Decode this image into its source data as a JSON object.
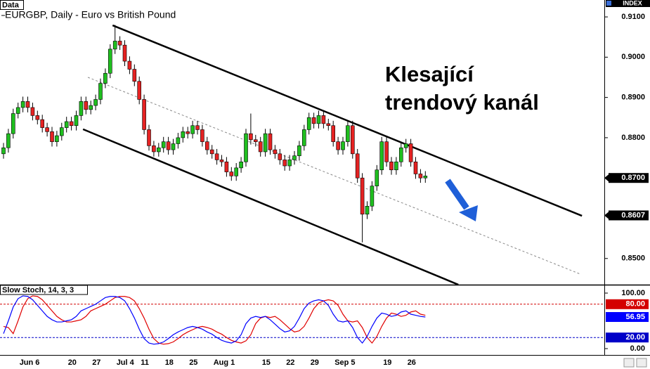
{
  "header": {
    "badge": "Data",
    "title": "EURGBP, Daily - Euro vs British Pound",
    "index_label": "INDEX"
  },
  "annotation": {
    "lines": [
      "Klesající",
      "trendový kanál"
    ]
  },
  "chart_data": [
    {
      "type": "candlestick",
      "categories": [
        null,
        null,
        null,
        "Jun 6",
        null,
        null,
        null,
        null,
        null,
        null,
        null,
        null,
        null,
        "20",
        null,
        null,
        null,
        null,
        "27",
        null,
        null,
        null,
        null,
        "Jul 4",
        null,
        null,
        null,
        null,
        "11",
        null,
        null,
        null,
        null,
        "18",
        null,
        null,
        null,
        null,
        "25",
        null,
        null,
        null,
        null,
        "Aug 1",
        null,
        null,
        null,
        null,
        null,
        null,
        null,
        null,
        null,
        "15",
        null,
        null,
        null,
        null,
        "22",
        null,
        null,
        null,
        null,
        "29",
        null,
        null,
        null,
        null,
        "Sep 5",
        null,
        null,
        null,
        null,
        null,
        null,
        null,
        null,
        null,
        "19",
        null,
        null,
        null,
        null,
        "26",
        null,
        null,
        null,
        null
      ],
      "open": [
        0.876,
        0.8775,
        0.881,
        0.886,
        0.8875,
        0.889,
        0.8875,
        0.8855,
        0.8845,
        0.8825,
        0.8815,
        0.879,
        0.8805,
        0.8825,
        0.884,
        0.883,
        0.8855,
        0.889,
        0.887,
        0.888,
        0.8895,
        0.8935,
        0.896,
        0.902,
        0.904,
        0.903,
        0.899,
        0.897,
        0.894,
        0.8895,
        0.882,
        0.878,
        0.8765,
        0.8775,
        0.879,
        0.877,
        0.8785,
        0.88,
        0.8815,
        0.881,
        0.883,
        0.882,
        0.879,
        0.877,
        0.876,
        0.8745,
        0.874,
        0.8715,
        0.8705,
        0.8725,
        0.874,
        0.881,
        0.8795,
        0.879,
        0.8765,
        0.881,
        0.877,
        0.876,
        0.8745,
        0.873,
        0.8745,
        0.8755,
        0.878,
        0.882,
        0.885,
        0.8835,
        0.8855,
        0.8835,
        0.883,
        0.879,
        0.877,
        0.879,
        0.883,
        0.876,
        0.87,
        0.861,
        0.863,
        0.868,
        0.872,
        0.879,
        0.874,
        0.872,
        0.874,
        0.8775,
        0.8785,
        0.874,
        0.871,
        0.87
      ],
      "high": [
        0.8787,
        0.8822,
        0.8872,
        0.8887,
        0.8902,
        0.8902,
        0.8887,
        0.8867,
        0.8857,
        0.8837,
        0.8827,
        0.8817,
        0.8837,
        0.8852,
        0.8852,
        0.8867,
        0.8902,
        0.8902,
        0.8892,
        0.8907,
        0.8947,
        0.8972,
        0.9032,
        0.908,
        0.9052,
        0.9042,
        0.9002,
        0.8982,
        0.8952,
        0.8907,
        0.8832,
        0.8792,
        0.8787,
        0.8802,
        0.8802,
        0.8797,
        0.8812,
        0.8827,
        0.8827,
        0.8842,
        0.8842,
        0.8832,
        0.8802,
        0.8782,
        0.8772,
        0.8757,
        0.8752,
        0.8727,
        0.8737,
        0.8752,
        0.8822,
        0.886,
        0.8807,
        0.8802,
        0.8822,
        0.8822,
        0.8782,
        0.8772,
        0.8757,
        0.8757,
        0.8767,
        0.8792,
        0.8832,
        0.8862,
        0.8862,
        0.8867,
        0.8867,
        0.8847,
        0.8842,
        0.8802,
        0.8802,
        0.8842,
        0.8842,
        0.8772,
        0.8712,
        0.8642,
        0.8692,
        0.8732,
        0.8802,
        0.8802,
        0.8752,
        0.8752,
        0.8787,
        0.8797,
        0.8797,
        0.8752,
        0.8722,
        0.8717
      ],
      "low": [
        0.8748,
        0.8763,
        0.8798,
        0.8848,
        0.8863,
        0.8863,
        0.8843,
        0.8833,
        0.8813,
        0.8803,
        0.8778,
        0.8778,
        0.8793,
        0.8813,
        0.8818,
        0.8818,
        0.8843,
        0.8858,
        0.8858,
        0.8868,
        0.8883,
        0.8923,
        0.8948,
        0.9008,
        0.9018,
        0.8978,
        0.8958,
        0.8928,
        0.8883,
        0.8808,
        0.8768,
        0.8753,
        0.8753,
        0.8763,
        0.8758,
        0.8758,
        0.8773,
        0.8788,
        0.8798,
        0.8798,
        0.8808,
        0.8778,
        0.8758,
        0.8748,
        0.8733,
        0.8728,
        0.8703,
        0.8693,
        0.8693,
        0.8713,
        0.8728,
        0.8783,
        0.8778,
        0.8753,
        0.8753,
        0.8758,
        0.8748,
        0.8733,
        0.8718,
        0.8718,
        0.8733,
        0.8743,
        0.8768,
        0.8808,
        0.8823,
        0.8823,
        0.8823,
        0.8818,
        0.8778,
        0.8758,
        0.8758,
        0.8778,
        0.8748,
        0.8688,
        0.854,
        0.8598,
        0.8618,
        0.8668,
        0.8708,
        0.8728,
        0.8708,
        0.8708,
        0.8728,
        0.8763,
        0.8728,
        0.8698,
        0.8688,
        0.8688
      ],
      "close": [
        0.8775,
        0.881,
        0.886,
        0.8875,
        0.889,
        0.8875,
        0.8855,
        0.8845,
        0.8825,
        0.8815,
        0.879,
        0.8805,
        0.8825,
        0.884,
        0.883,
        0.8855,
        0.889,
        0.887,
        0.888,
        0.8895,
        0.8935,
        0.896,
        0.902,
        0.904,
        0.903,
        0.899,
        0.897,
        0.894,
        0.8895,
        0.882,
        0.878,
        0.8765,
        0.8775,
        0.879,
        0.877,
        0.8785,
        0.88,
        0.8815,
        0.881,
        0.883,
        0.882,
        0.879,
        0.877,
        0.876,
        0.8745,
        0.874,
        0.8715,
        0.8705,
        0.8725,
        0.874,
        0.881,
        0.8795,
        0.879,
        0.8765,
        0.881,
        0.877,
        0.876,
        0.8745,
        0.873,
        0.8745,
        0.8755,
        0.878,
        0.882,
        0.885,
        0.8835,
        0.8855,
        0.8835,
        0.883,
        0.879,
        0.877,
        0.879,
        0.883,
        0.876,
        0.87,
        0.861,
        0.863,
        0.868,
        0.872,
        0.879,
        0.874,
        0.872,
        0.874,
        0.8775,
        0.8785,
        0.874,
        0.871,
        0.87,
        0.8705
      ],
      "up_color": "#1fbf1f",
      "down_color": "#e52222",
      "ylim": [
        0.8435,
        0.9142
      ],
      "yticks": [
        {
          "value": 0.91,
          "label": "0.9100"
        },
        {
          "value": 0.9,
          "label": "0.9000"
        },
        {
          "value": 0.89,
          "label": "0.8900"
        },
        {
          "value": 0.88,
          "label": "0.8800"
        },
        {
          "value": 0.85,
          "label": "0.8500"
        }
      ],
      "markers": [
        {
          "value": 0.87,
          "label": "0.8700"
        },
        {
          "value": 0.8607,
          "label": "0.8607"
        }
      ],
      "trendlines": [
        {
          "x": [
            22.5,
            119.3
          ],
          "y": [
            0.9079,
            0.8606
          ],
          "dashed": false
        },
        {
          "x": [
            16.4,
            93.8
          ],
          "y": [
            0.8821,
            0.8435
          ],
          "dashed": false
        },
        {
          "x": [
            17.4,
            118.8
          ],
          "y": [
            0.895,
            0.8462
          ],
          "dashed": true
        }
      ]
    },
    {
      "type": "line",
      "title": "Slow Stoch, 14, 3, 3",
      "ylim": [
        -11.4,
        115.2
      ],
      "yticks": [
        {
          "value": 100,
          "label": "100.00"
        },
        {
          "value": 0,
          "label": "0.00"
        }
      ],
      "levels": [
        {
          "value": 80,
          "label": "80.00",
          "color": "#d40000"
        },
        {
          "value": 20,
          "label": "20.00",
          "color": "#0000c8"
        }
      ],
      "series": [
        {
          "color": "#e00000",
          "values": [
            40,
            38,
            27,
            50,
            75,
            90,
            95,
            94,
            88,
            78,
            68,
            58,
            52,
            48,
            48,
            50,
            52,
            58,
            68,
            72,
            76,
            80,
            86,
            92,
            94,
            94,
            92,
            86,
            72,
            55,
            35,
            18,
            10,
            8,
            9,
            12,
            18,
            25,
            30,
            34,
            38,
            40,
            38,
            35,
            30,
            26,
            20,
            15,
            12,
            10,
            14,
            25,
            45,
            55,
            58,
            56,
            58,
            52,
            44,
            36,
            30,
            32,
            40,
            55,
            72,
            82,
            86,
            88,
            86,
            78,
            62,
            50,
            48,
            50,
            38,
            20,
            10,
            22,
            40,
            55,
            64,
            62,
            58,
            60,
            66,
            68,
            62,
            60
          ]
        },
        {
          "color": "#0000ff",
          "values": [
            27,
            50,
            75,
            90,
            95,
            94,
            88,
            78,
            68,
            58,
            52,
            48,
            48,
            50,
            52,
            58,
            68,
            72,
            76,
            80,
            86,
            92,
            94,
            94,
            92,
            86,
            72,
            55,
            35,
            18,
            10,
            8,
            9,
            12,
            18,
            25,
            30,
            34,
            38,
            40,
            38,
            35,
            30,
            26,
            20,
            15,
            12,
            10,
            14,
            25,
            45,
            55,
            58,
            56,
            58,
            52,
            44,
            36,
            30,
            32,
            40,
            55,
            72,
            82,
            86,
            88,
            86,
            78,
            62,
            50,
            48,
            50,
            38,
            20,
            10,
            22,
            40,
            55,
            64,
            62,
            58,
            60,
            66,
            68,
            62,
            60,
            58,
            56.95
          ]
        }
      ]
    }
  ]
}
